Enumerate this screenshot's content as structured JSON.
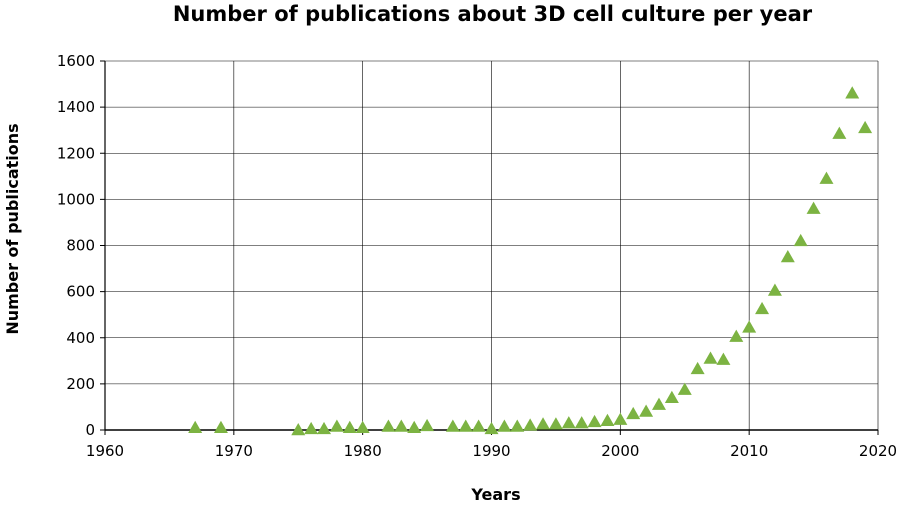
{
  "chart_data": {
    "type": "scatter",
    "title": "Number of publications about 3D cell culture per year",
    "xlabel": "Years",
    "ylabel": "Number of publications",
    "xlim": [
      1960,
      2020
    ],
    "ylim": [
      0,
      1600
    ],
    "xticks": [
      1960,
      1970,
      1980,
      1990,
      2000,
      2010,
      2020
    ],
    "yticks": [
      0,
      200,
      400,
      600,
      800,
      1000,
      1200,
      1400,
      1600
    ],
    "grid": true,
    "marker": "triangle",
    "marker_color": "#7cb342",
    "series": [
      {
        "points": [
          [
            1967,
            10
          ],
          [
            1969,
            10
          ],
          [
            1975,
            0
          ],
          [
            1976,
            5
          ],
          [
            1977,
            5
          ],
          [
            1978,
            15
          ],
          [
            1979,
            10
          ],
          [
            1980,
            10
          ],
          [
            1982,
            15
          ],
          [
            1983,
            15
          ],
          [
            1984,
            10
          ],
          [
            1985,
            18
          ],
          [
            1987,
            15
          ],
          [
            1988,
            15
          ],
          [
            1989,
            15
          ],
          [
            1990,
            5
          ],
          [
            1991,
            15
          ],
          [
            1992,
            15
          ],
          [
            1993,
            20
          ],
          [
            1994,
            25
          ],
          [
            1995,
            25
          ],
          [
            1996,
            30
          ],
          [
            1997,
            30
          ],
          [
            1998,
            35
          ],
          [
            1999,
            40
          ],
          [
            2000,
            45
          ],
          [
            2001,
            70
          ],
          [
            2002,
            80
          ],
          [
            2003,
            110
          ],
          [
            2004,
            140
          ],
          [
            2005,
            175
          ],
          [
            2006,
            265
          ],
          [
            2007,
            310
          ],
          [
            2008,
            305
          ],
          [
            2009,
            405
          ],
          [
            2010,
            445
          ],
          [
            2011,
            525
          ],
          [
            2012,
            605
          ],
          [
            2013,
            750
          ],
          [
            2014,
            820
          ],
          [
            2015,
            960
          ],
          [
            2016,
            1090
          ],
          [
            2017,
            1285
          ],
          [
            2018,
            1460
          ],
          [
            2019,
            1310
          ]
        ]
      }
    ]
  }
}
